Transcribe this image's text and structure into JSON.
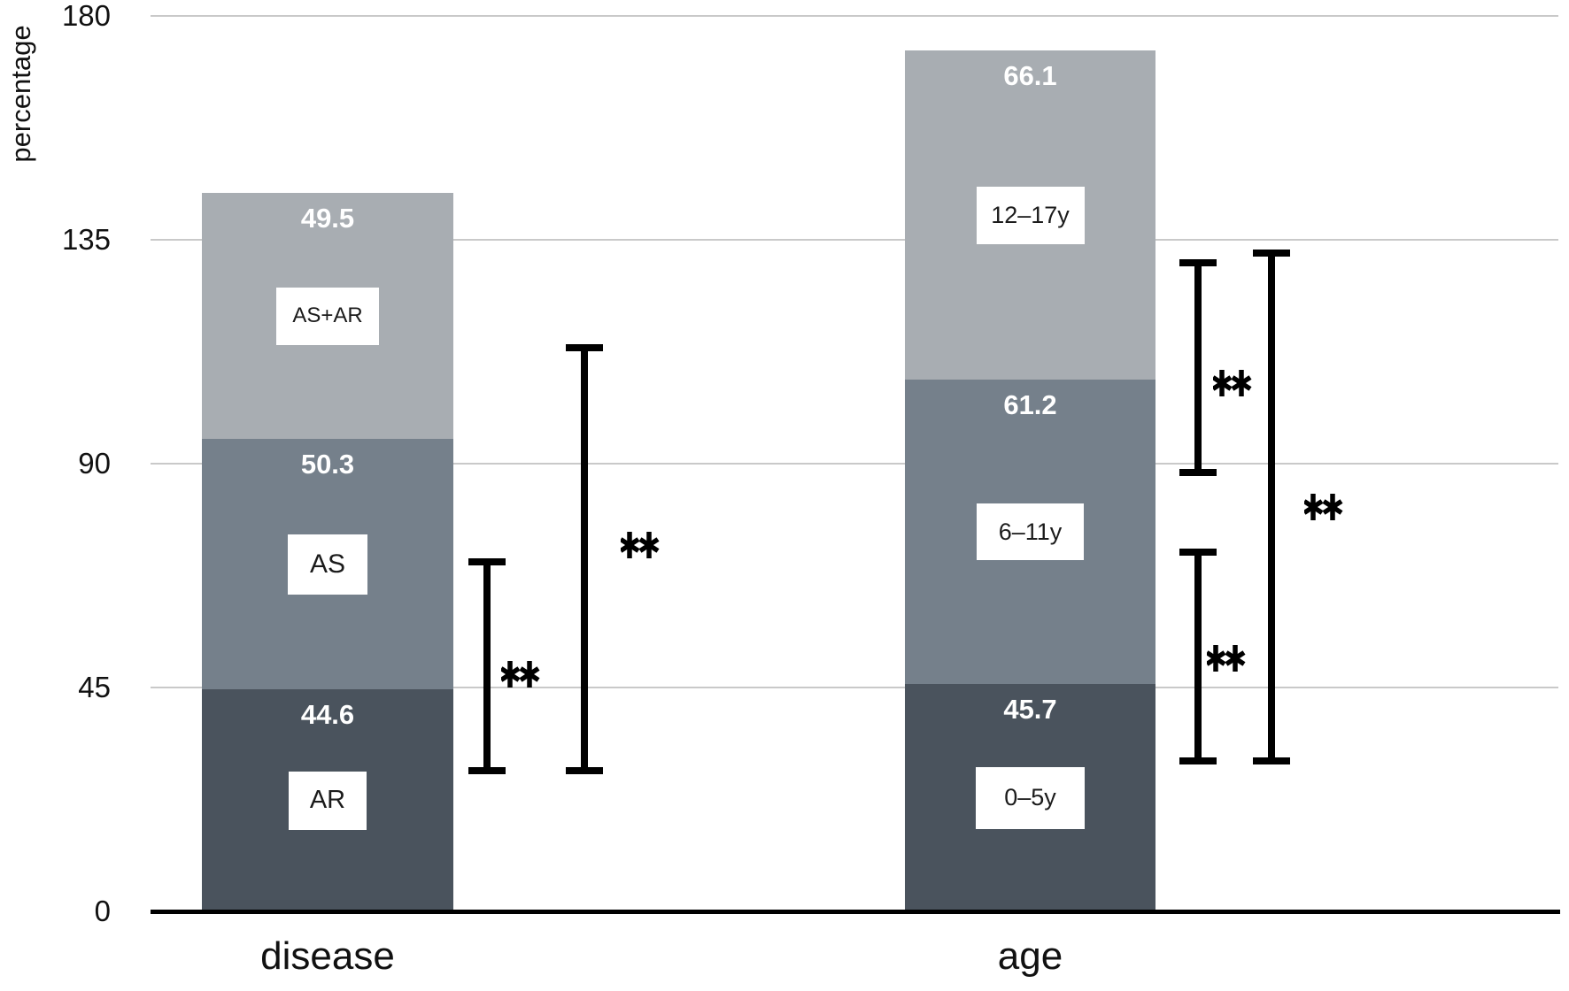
{
  "chart_data": {
    "type": "bar",
    "subtype": "stacked",
    "title": "",
    "xlabel": "",
    "ylabel": "percentage",
    "ylim": [
      0,
      180
    ],
    "yticks": [
      0,
      45,
      90,
      135,
      180
    ],
    "grid": "horizontal",
    "legend": "none (segments labeled inline)",
    "groups": [
      {
        "category": "disease",
        "segments": [
          {
            "label": "AR",
            "value": 44.6
          },
          {
            "label": "AS",
            "value": 50.3
          },
          {
            "label": "AS+AR",
            "value": 49.5
          }
        ],
        "total": 144.4
      },
      {
        "category": "age",
        "segments": [
          {
            "label": "0–5y",
            "value": 45.7
          },
          {
            "label": "6–11y",
            "value": 61.2
          },
          {
            "label": "12–17y",
            "value": 66.1
          }
        ],
        "total": 173.0
      }
    ],
    "significance_brackets": [
      {
        "group": "disease",
        "span": [
          29,
          71
        ],
        "label": "**"
      },
      {
        "group": "disease",
        "span": [
          29,
          114
        ],
        "label": "**"
      },
      {
        "group": "age",
        "span": [
          89,
          131
        ],
        "label": "**"
      },
      {
        "group": "age",
        "span": [
          31,
          73
        ],
        "label": "**"
      },
      {
        "group": "age",
        "span": [
          31,
          133
        ],
        "label": "**"
      }
    ],
    "colors": {
      "segment_bottom": "#4A535D",
      "segment_middle": "#75808B",
      "segment_top": "#A8ADB2",
      "gridline": "#C9C9C9",
      "axis_line": "#000000",
      "value_label": "#FFFFFF",
      "text": "#111111",
      "background": "#FFFFFF"
    }
  }
}
